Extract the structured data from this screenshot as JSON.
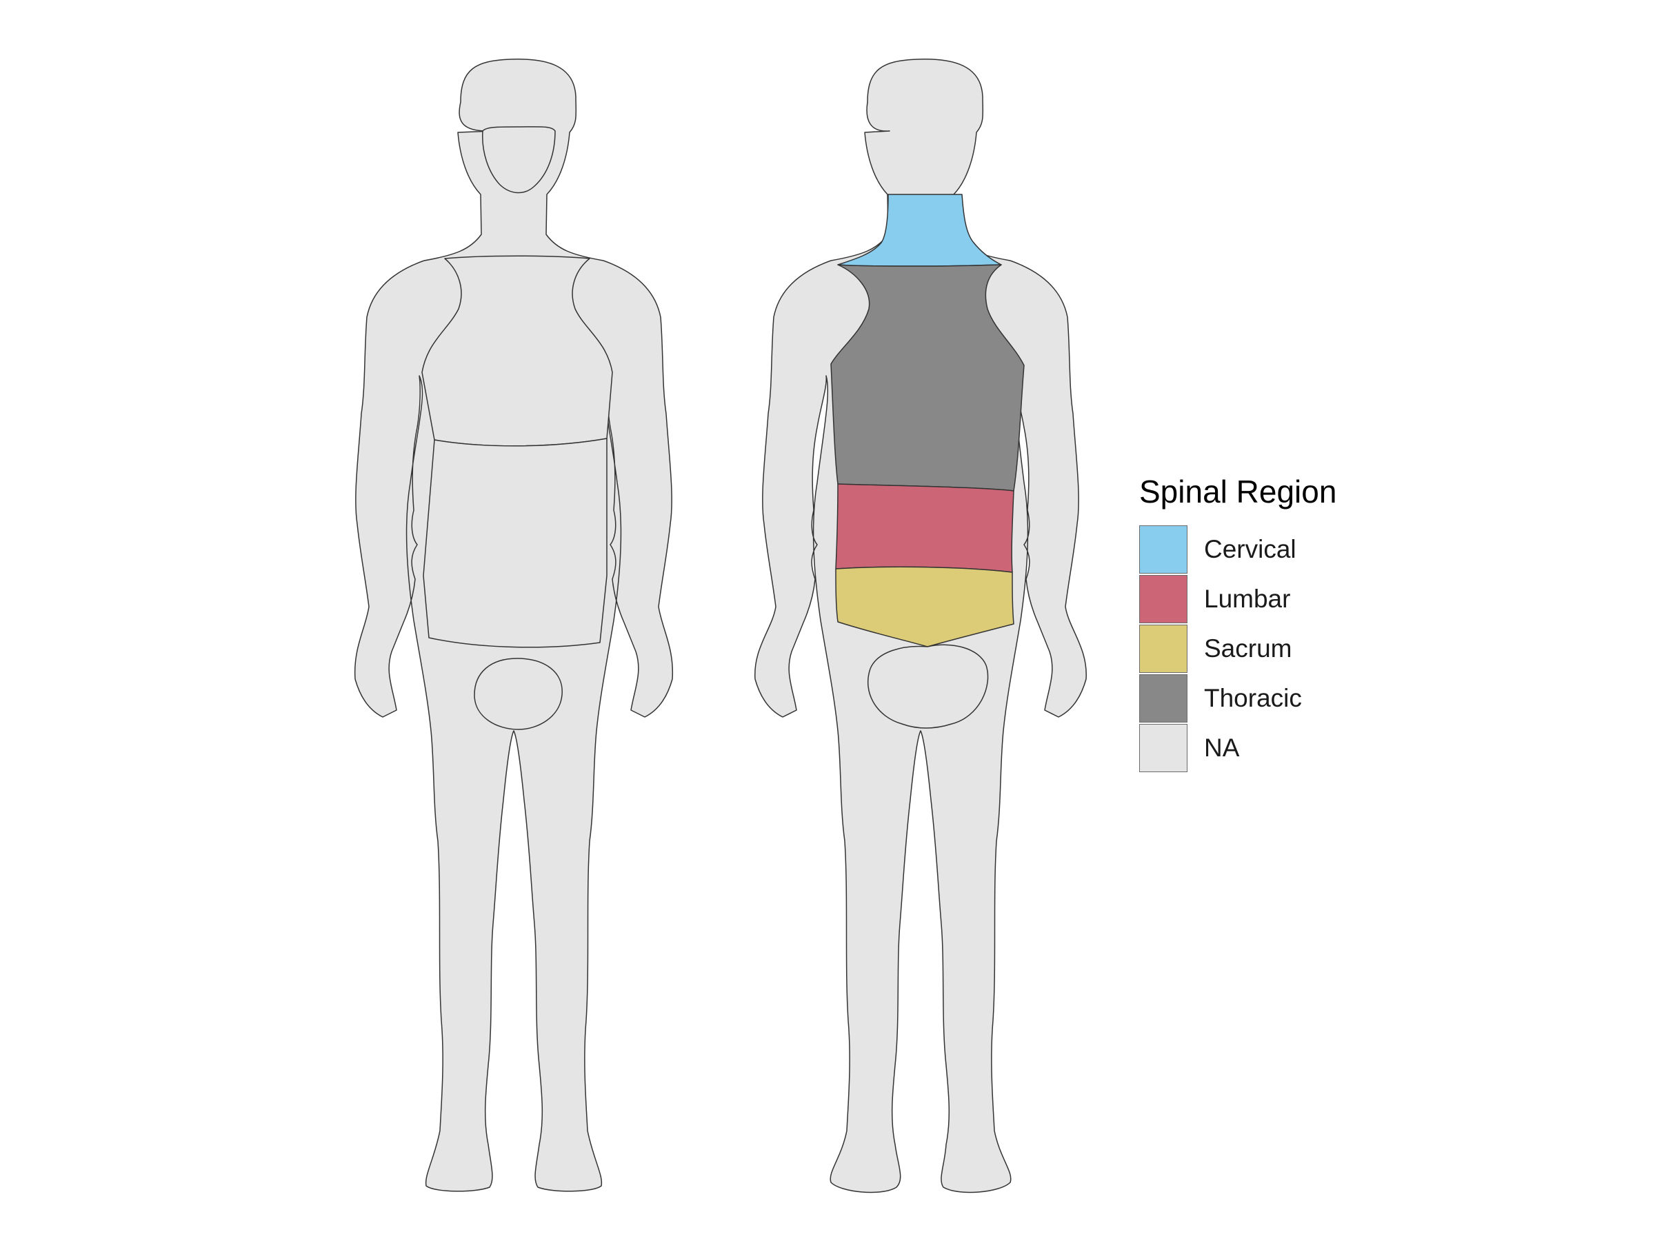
{
  "legend": {
    "title": "Spinal Region",
    "items": [
      {
        "label": "Cervical",
        "color": "#88ccee"
      },
      {
        "label": "Lumbar",
        "color": "#cc6677"
      },
      {
        "label": "Sacrum",
        "color": "#ddcc77"
      },
      {
        "label": "Thoracic",
        "color": "#888888"
      },
      {
        "label": "NA",
        "color": "#e5e5e5"
      }
    ]
  },
  "regions": {
    "front_figure": {
      "view": "front",
      "fill_label": "NA"
    },
    "back_figure": {
      "view": "back",
      "body_fill_label": "NA",
      "neck_label": "Cervical",
      "upper_back_label": "Thoracic",
      "lower_back_label": "Lumbar",
      "pelvis_label": "Sacrum"
    }
  }
}
